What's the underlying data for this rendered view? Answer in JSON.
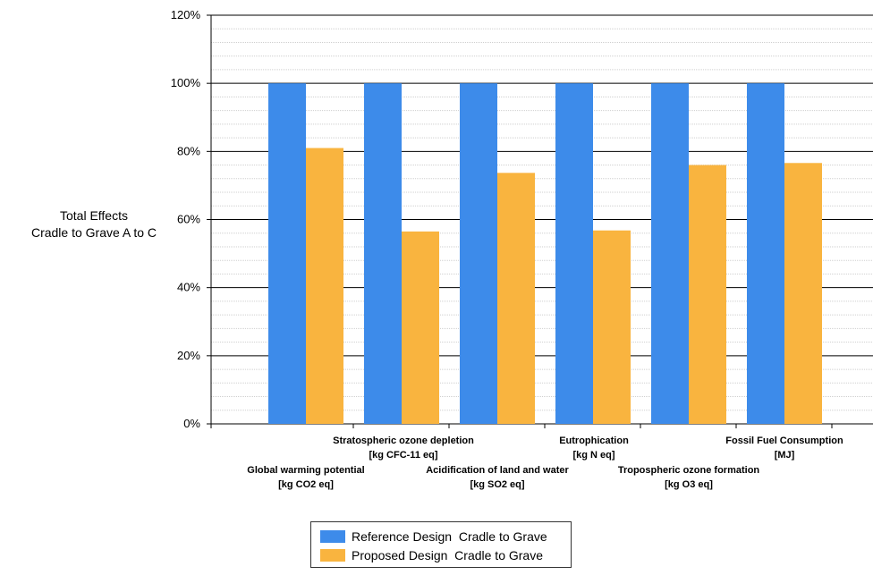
{
  "chart_data": {
    "type": "bar",
    "title": "",
    "ylabel": [
      "Total Effects",
      "Cradle to Grave A to C"
    ],
    "xlabel": "",
    "ylim": [
      0,
      120
    ],
    "y_ticks": [
      "0%",
      "20%",
      "40%",
      "60%",
      "80%",
      "100%",
      "120%"
    ],
    "grid": true,
    "legend_position": "bottom",
    "categories": [
      {
        "line1": "Global warming potential",
        "line2": "[kg CO2 eq]"
      },
      {
        "line1": "Stratospheric ozone depletion",
        "line2": "[kg CFC-11 eq]"
      },
      {
        "line1": "Acidification of land and water",
        "line2": "[kg SO2 eq]"
      },
      {
        "line1": "Eutrophication",
        "line2": "[kg N eq]"
      },
      {
        "line1": "Tropospheric ozone formation",
        "line2": "[kg O3 eq]"
      },
      {
        "line1": "Fossil Fuel Consumption",
        "line2": "[MJ]"
      }
    ],
    "series": [
      {
        "name": "Reference Design  Cradle to Grave",
        "color": "#3d8bea",
        "values": [
          100,
          100,
          100,
          100,
          100,
          100
        ]
      },
      {
        "name": "Proposed Design  Cradle to Grave",
        "color": "#f9b43f",
        "values": [
          81,
          56.5,
          73.7,
          56.8,
          76,
          76.6
        ]
      }
    ]
  },
  "legend": {
    "items": [
      {
        "label": "Reference Design  Cradle to Grave",
        "color": "#3d8bea"
      },
      {
        "label": "Proposed Design  Cradle to Grave",
        "color": "#f9b43f"
      }
    ]
  }
}
